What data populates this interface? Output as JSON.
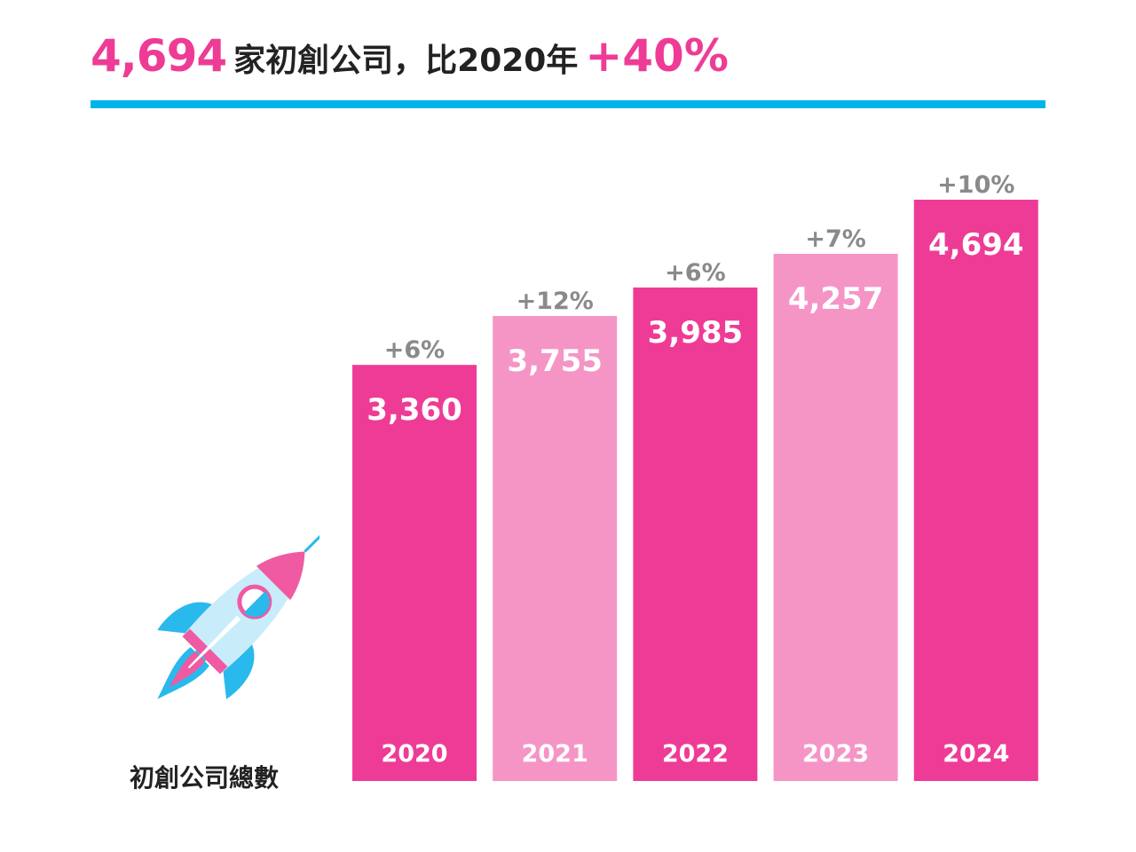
{
  "headline": {
    "count": "4,694",
    "text": "家初創公司，比2020年",
    "growth": "+40%"
  },
  "caption": "初創公司總數",
  "colors": {
    "accent_pink": "#ee3c96",
    "light_pink": "#f595c6",
    "rule_blue": "#00b4ea",
    "growth_label_gray": "#8a8a8a"
  },
  "icon": "rocket-icon",
  "chart_data": {
    "type": "bar",
    "categories": [
      "2020",
      "2021",
      "2022",
      "2023",
      "2024"
    ],
    "values": [
      3360,
      3755,
      3985,
      4257,
      4694
    ],
    "value_labels": [
      "3,360",
      "3,755",
      "3,985",
      "4,257",
      "4,694"
    ],
    "growth_labels": [
      "+6%",
      "+12%",
      "+6%",
      "+7%",
      "+10%"
    ],
    "bar_colors": [
      "#ee3c96",
      "#f595c6",
      "#ee3c96",
      "#f595c6",
      "#ee3c96"
    ],
    "title": "",
    "xlabel": "",
    "ylabel": "",
    "ylim": [
      0,
      5000
    ],
    "grid": false,
    "legend": "none"
  }
}
